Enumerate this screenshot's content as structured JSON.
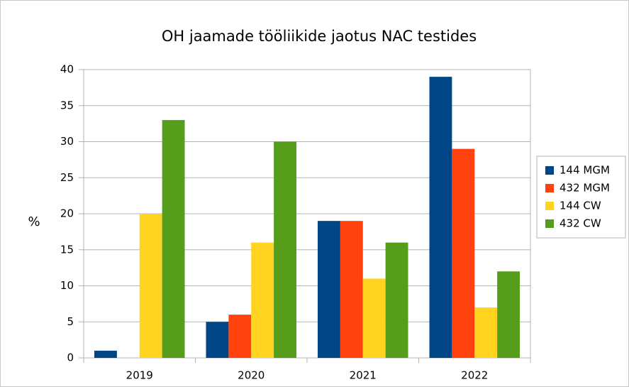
{
  "chart_data": {
    "type": "bar",
    "title": "OH jaamade tööliikide jaotus NAC testides",
    "y_label": "%",
    "categories": [
      "2019",
      "2020",
      "2021",
      "2022"
    ],
    "series": [
      {
        "name": "144 MGM",
        "color": "#004586",
        "values": [
          1,
          5,
          19,
          39
        ]
      },
      {
        "name": "432 MGM",
        "color": "#ff420e",
        "values": [
          0,
          6,
          19,
          29
        ]
      },
      {
        "name": "144 CW",
        "color": "#ffd320",
        "values": [
          20,
          16,
          11,
          7
        ]
      },
      {
        "name": "432 CW",
        "color": "#579d1c",
        "values": [
          33,
          30,
          16,
          12
        ]
      }
    ],
    "ylim": [
      0,
      40
    ],
    "yticks": [
      0,
      5,
      10,
      15,
      20,
      25,
      30,
      35,
      40
    ],
    "grid": true,
    "legend": "right"
  }
}
